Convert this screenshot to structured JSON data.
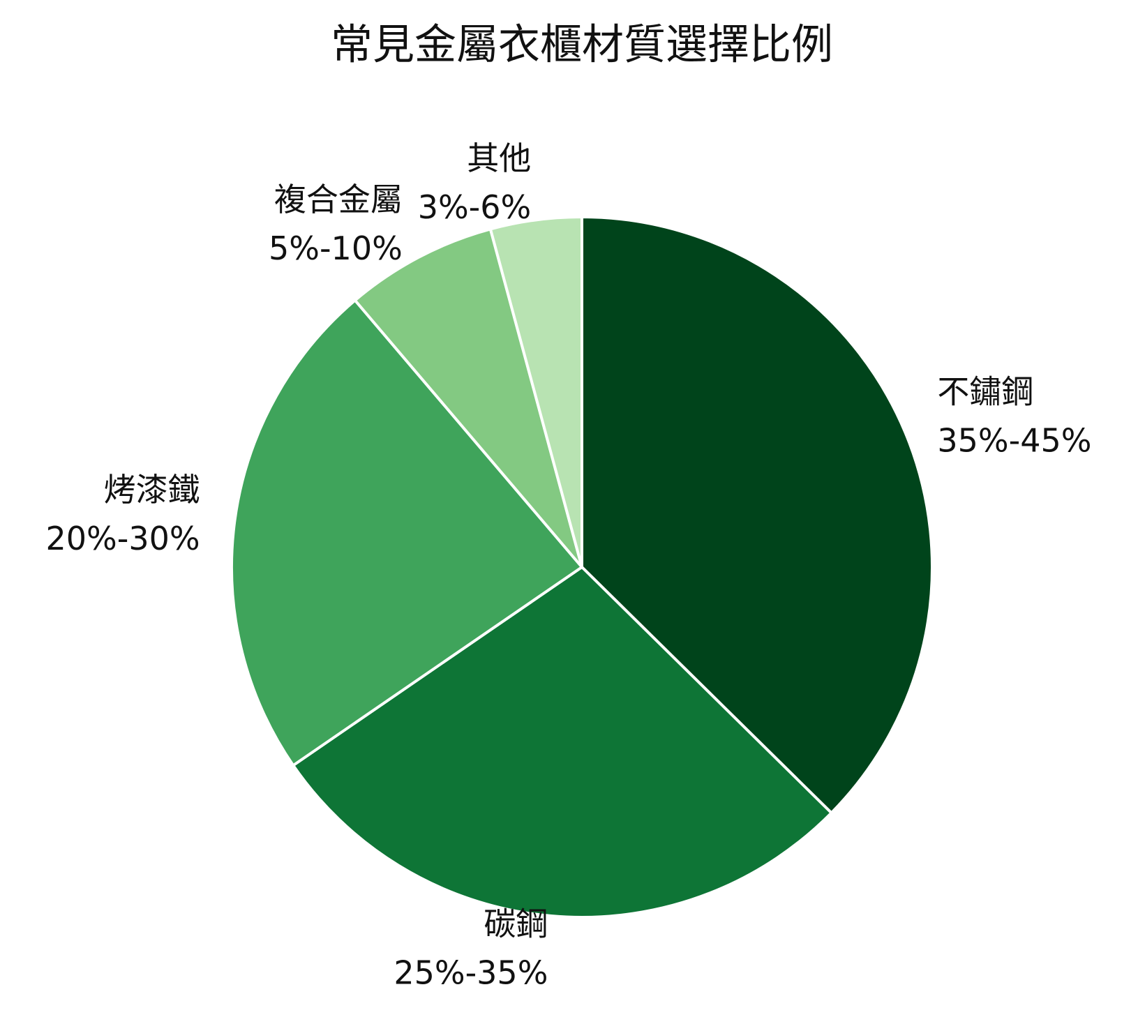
{
  "chart_data": {
    "type": "pie",
    "title": "常見金屬衣櫃材質選擇比例",
    "categories": [
      "不鏽鋼",
      "碳鋼",
      "烤漆鐵",
      "複合金屬",
      "其他"
    ],
    "ranges": [
      [
        35,
        45
      ],
      [
        25,
        35
      ],
      [
        20,
        30
      ],
      [
        5,
        10
      ],
      [
        3,
        6
      ]
    ],
    "value_labels": [
      "35%-45%",
      "25%-35%",
      "20%-30%",
      "5%-10%",
      "3%-6%"
    ],
    "colors": [
      "#00441b",
      "#0e7536",
      "#3fa45b",
      "#83c982",
      "#b8e3b2"
    ]
  }
}
